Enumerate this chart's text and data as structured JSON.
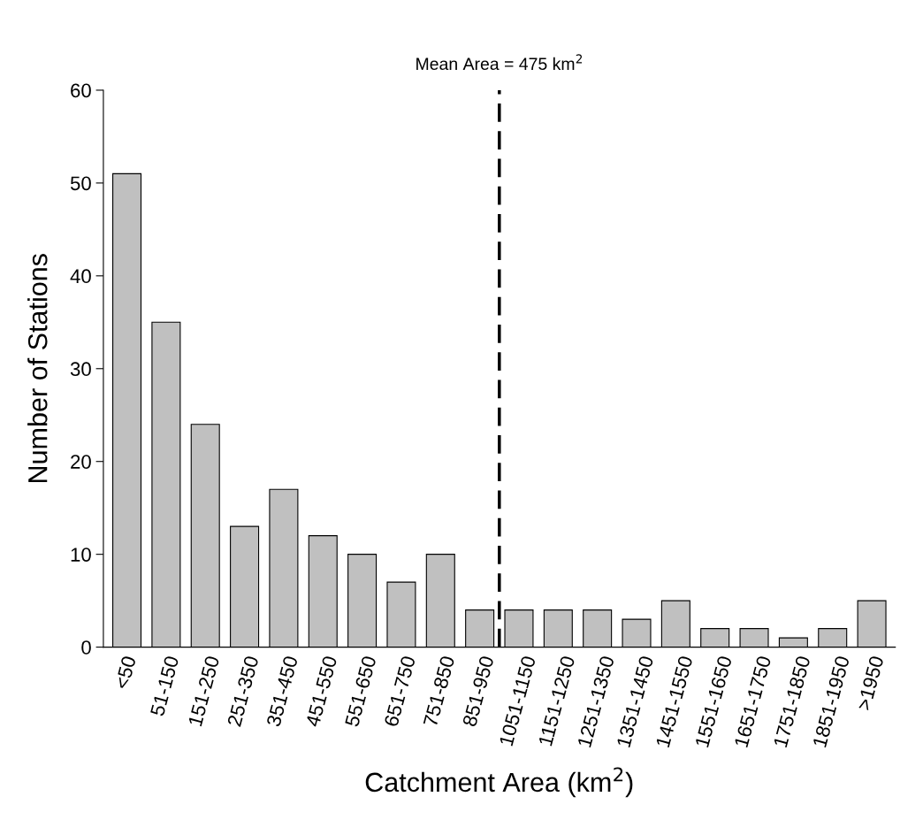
{
  "chart_data": {
    "type": "bar",
    "xlabel": "Catchment Area (km$^{2}$)",
    "ylabel": "Number of Stations",
    "categories": [
      "<50",
      "51-150",
      "151-250",
      "251-350",
      "351-450",
      "451-550",
      "551-650",
      "651-750",
      "751-850",
      "851-950",
      "1051-1150",
      "1151-1250",
      "1251-1350",
      "1351-1450",
      "1451-1550",
      "1551-1650",
      "1651-1750",
      "1751-1850",
      "1851-1950",
      ">1950"
    ],
    "values": [
      51,
      35,
      24,
      13,
      17,
      12,
      10,
      7,
      10,
      4,
      4,
      4,
      4,
      3,
      5,
      2,
      2,
      1,
      2,
      5
    ],
    "color": "#c0c0c0",
    "ylim": [
      0,
      60
    ],
    "yticks": [
      0,
      10,
      20,
      30,
      40,
      50,
      60
    ],
    "grid": false,
    "legend": false,
    "annotations": [
      "Mean Area = 475 km$^{2}$"
    ]
  }
}
